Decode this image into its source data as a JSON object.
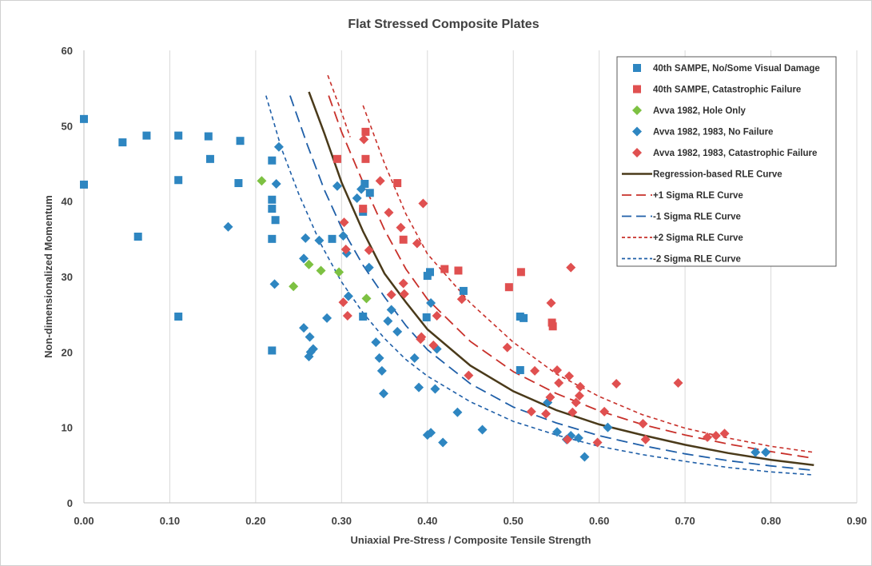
{
  "chart_data": {
    "type": "scatter",
    "title": "Flat Stressed Composite Plates",
    "xlabel": "Uniaxial Pre-Stress / Composite Tensile Strength",
    "ylabel": "Non-dimensionalized Momentum",
    "xlim": [
      0,
      0.9
    ],
    "ylim": [
      0,
      60
    ],
    "x_ticks": [
      "0.00",
      "0.10",
      "0.20",
      "0.30",
      "0.40",
      "0.50",
      "0.60",
      "0.70",
      "0.80",
      "0.90"
    ],
    "y_ticks": [
      "0",
      "10",
      "20",
      "30",
      "40",
      "50",
      "60"
    ],
    "grid": "vertical",
    "legend_position": "top-right",
    "series": [
      {
        "name": "40th SAMPE, No/Some Visual Damage",
        "kind": "scatter",
        "marker": "square",
        "color": "#2e86c1",
        "points": [
          [
            0.0,
            50.9
          ],
          [
            0.0,
            42.2
          ],
          [
            0.045,
            47.8
          ],
          [
            0.063,
            35.3
          ],
          [
            0.073,
            48.7
          ],
          [
            0.11,
            48.7
          ],
          [
            0.11,
            42.8
          ],
          [
            0.11,
            24.7
          ],
          [
            0.145,
            48.6
          ],
          [
            0.147,
            45.6
          ],
          [
            0.18,
            42.4
          ],
          [
            0.182,
            48.0
          ],
          [
            0.219,
            45.4
          ],
          [
            0.219,
            40.2
          ],
          [
            0.219,
            39.0
          ],
          [
            0.219,
            35.0
          ],
          [
            0.219,
            20.2
          ],
          [
            0.223,
            37.5
          ],
          [
            0.289,
            35.0
          ],
          [
            0.325,
            38.6
          ],
          [
            0.325,
            24.7
          ],
          [
            0.327,
            42.3
          ],
          [
            0.333,
            41.1
          ],
          [
            0.4,
            30.1
          ],
          [
            0.403,
            30.6
          ],
          [
            0.399,
            24.6
          ],
          [
            0.442,
            28.1
          ],
          [
            0.508,
            24.7
          ],
          [
            0.512,
            24.5
          ],
          [
            0.508,
            17.6
          ]
        ]
      },
      {
        "name": "40th SAMPE, Catastrophic Failure",
        "kind": "scatter",
        "marker": "square",
        "color": "#e05050",
        "points": [
          [
            0.295,
            45.6
          ],
          [
            0.328,
            49.2
          ],
          [
            0.328,
            45.6
          ],
          [
            0.325,
            39.0
          ],
          [
            0.365,
            42.4
          ],
          [
            0.372,
            34.9
          ],
          [
            0.42,
            31.0
          ],
          [
            0.436,
            30.8
          ],
          [
            0.495,
            28.6
          ],
          [
            0.509,
            30.6
          ],
          [
            0.545,
            23.9
          ],
          [
            0.546,
            23.4
          ]
        ]
      },
      {
        "name": "Avva 1982, Hole Only",
        "kind": "scatter",
        "marker": "diamond",
        "color": "#7dc142",
        "points": [
          [
            0.207,
            42.7
          ],
          [
            0.262,
            31.6
          ],
          [
            0.244,
            28.7
          ],
          [
            0.276,
            30.8
          ],
          [
            0.297,
            30.6
          ],
          [
            0.329,
            27.1
          ]
        ]
      },
      {
        "name": "Avva 1982, 1983, No Failure",
        "kind": "scatter",
        "marker": "diamond",
        "color": "#2e86c1",
        "points": [
          [
            0.227,
            47.2
          ],
          [
            0.224,
            42.3
          ],
          [
            0.168,
            36.6
          ],
          [
            0.222,
            29.0
          ],
          [
            0.258,
            35.1
          ],
          [
            0.256,
            32.4
          ],
          [
            0.274,
            34.8
          ],
          [
            0.295,
            42.0
          ],
          [
            0.302,
            35.4
          ],
          [
            0.306,
            33.1
          ],
          [
            0.308,
            27.4
          ],
          [
            0.256,
            23.2
          ],
          [
            0.263,
            22.0
          ],
          [
            0.267,
            20.4
          ],
          [
            0.264,
            20.0
          ],
          [
            0.262,
            19.4
          ],
          [
            0.283,
            24.5
          ],
          [
            0.318,
            40.4
          ],
          [
            0.323,
            41.6
          ],
          [
            0.332,
            31.2
          ],
          [
            0.34,
            21.3
          ],
          [
            0.344,
            19.2
          ],
          [
            0.347,
            17.5
          ],
          [
            0.349,
            14.5
          ],
          [
            0.354,
            24.1
          ],
          [
            0.358,
            25.6
          ],
          [
            0.365,
            22.7
          ],
          [
            0.385,
            19.2
          ],
          [
            0.39,
            15.3
          ],
          [
            0.4,
            9.0
          ],
          [
            0.404,
            9.3
          ],
          [
            0.404,
            26.5
          ],
          [
            0.409,
            15.1
          ],
          [
            0.411,
            20.4
          ],
          [
            0.418,
            8.0
          ],
          [
            0.435,
            12.0
          ],
          [
            0.464,
            9.7
          ],
          [
            0.54,
            13.3
          ],
          [
            0.551,
            9.4
          ],
          [
            0.562,
            8.4
          ],
          [
            0.567,
            8.9
          ],
          [
            0.576,
            8.6
          ],
          [
            0.583,
            6.1
          ],
          [
            0.61,
            10.0
          ],
          [
            0.782,
            6.7
          ],
          [
            0.794,
            6.7
          ]
        ]
      },
      {
        "name": "Avva 1982, 1983, Catastrophic Failure",
        "kind": "scatter",
        "marker": "diamond",
        "color": "#e05050",
        "points": [
          [
            0.326,
            48.2
          ],
          [
            0.303,
            37.2
          ],
          [
            0.305,
            33.6
          ],
          [
            0.302,
            26.6
          ],
          [
            0.307,
            24.8
          ],
          [
            0.332,
            33.5
          ],
          [
            0.345,
            42.7
          ],
          [
            0.355,
            38.5
          ],
          [
            0.358,
            27.6
          ],
          [
            0.369,
            36.5
          ],
          [
            0.372,
            29.1
          ],
          [
            0.373,
            27.7
          ],
          [
            0.388,
            34.4
          ],
          [
            0.393,
            22.0
          ],
          [
            0.392,
            21.7
          ],
          [
            0.395,
            39.7
          ],
          [
            0.407,
            20.9
          ],
          [
            0.411,
            24.8
          ],
          [
            0.44,
            27.0
          ],
          [
            0.448,
            16.9
          ],
          [
            0.493,
            20.6
          ],
          [
            0.521,
            12.1
          ],
          [
            0.525,
            17.5
          ],
          [
            0.538,
            11.8
          ],
          [
            0.543,
            14.0
          ],
          [
            0.544,
            26.5
          ],
          [
            0.551,
            17.6
          ],
          [
            0.553,
            15.9
          ],
          [
            0.563,
            8.4
          ],
          [
            0.565,
            16.8
          ],
          [
            0.567,
            31.2
          ],
          [
            0.569,
            12.0
          ],
          [
            0.573,
            13.3
          ],
          [
            0.577,
            14.2
          ],
          [
            0.578,
            15.4
          ],
          [
            0.598,
            8.0
          ],
          [
            0.606,
            12.1
          ],
          [
            0.62,
            15.8
          ],
          [
            0.651,
            10.5
          ],
          [
            0.654,
            8.4
          ],
          [
            0.692,
            15.9
          ],
          [
            0.726,
            8.7
          ],
          [
            0.736,
            8.9
          ],
          [
            0.746,
            9.2
          ]
        ]
      },
      {
        "name": "Regression-based RLE Curve",
        "kind": "line",
        "dash": "solid",
        "color": "#4a3a1a",
        "width": 2.5,
        "points": [
          [
            0.262,
            54.5
          ],
          [
            0.28,
            49.0
          ],
          [
            0.3,
            42.5
          ],
          [
            0.325,
            36.0
          ],
          [
            0.35,
            30.4
          ],
          [
            0.375,
            26.6
          ],
          [
            0.4,
            23.0
          ],
          [
            0.45,
            18.2
          ],
          [
            0.5,
            14.8
          ],
          [
            0.55,
            12.3
          ],
          [
            0.6,
            10.4
          ],
          [
            0.65,
            9.0
          ],
          [
            0.7,
            7.7
          ],
          [
            0.75,
            6.6
          ],
          [
            0.8,
            5.7
          ],
          [
            0.85,
            5.0
          ]
        ]
      },
      {
        "name": "+1 Sigma RLE Curve",
        "kind": "line",
        "dash": "long",
        "color": "#c8302a",
        "width": 1.8,
        "points": [
          [
            0.285,
            54.0
          ],
          [
            0.3,
            49.2
          ],
          [
            0.325,
            42.5
          ],
          [
            0.35,
            36.2
          ],
          [
            0.375,
            31.0
          ],
          [
            0.4,
            27.0
          ],
          [
            0.45,
            21.4
          ],
          [
            0.5,
            17.4
          ],
          [
            0.55,
            14.5
          ],
          [
            0.6,
            12.2
          ],
          [
            0.65,
            10.4
          ],
          [
            0.7,
            9.0
          ],
          [
            0.75,
            7.8
          ],
          [
            0.8,
            6.8
          ],
          [
            0.85,
            5.9
          ]
        ]
      },
      {
        "name": "-1 Sigma RLE Curve",
        "kind": "line",
        "dash": "long",
        "color": "#1f5fa8",
        "width": 1.8,
        "points": [
          [
            0.24,
            54.0
          ],
          [
            0.26,
            47.5
          ],
          [
            0.28,
            41.5
          ],
          [
            0.3,
            36.5
          ],
          [
            0.325,
            31.5
          ],
          [
            0.35,
            27.3
          ],
          [
            0.375,
            23.5
          ],
          [
            0.4,
            20.3
          ],
          [
            0.45,
            15.8
          ],
          [
            0.5,
            12.7
          ],
          [
            0.55,
            10.6
          ],
          [
            0.6,
            8.9
          ],
          [
            0.65,
            7.6
          ],
          [
            0.7,
            6.5
          ],
          [
            0.75,
            5.6
          ],
          [
            0.8,
            4.9
          ],
          [
            0.85,
            4.3
          ]
        ]
      },
      {
        "name": "+2 Sigma RLE Curve",
        "kind": "line",
        "dash": "short",
        "color": "#c8302a",
        "width": 1.6,
        "points": [
          [
            0.284,
            56.7
          ],
          [
            0.3,
            51.8
          ],
          [
            0.31,
            48.5
          ]
        ]
      },
      {
        "name": "+2 Sigma RLE Curve (continued)",
        "kind": "line",
        "dash": "short",
        "color": "#c8302a",
        "width": 1.6,
        "points": [
          [
            0.325,
            52.7
          ],
          [
            0.35,
            45.0
          ],
          [
            0.375,
            38.3
          ],
          [
            0.4,
            33.0
          ],
          [
            0.45,
            26.5
          ],
          [
            0.5,
            21.3
          ],
          [
            0.55,
            17.1
          ],
          [
            0.6,
            14.1
          ],
          [
            0.65,
            11.7
          ],
          [
            0.7,
            9.9
          ],
          [
            0.75,
            8.6
          ],
          [
            0.8,
            7.5
          ],
          [
            0.85,
            6.7
          ]
        ]
      },
      {
        "name": "-2 Sigma RLE Curve",
        "kind": "line",
        "dash": "short",
        "color": "#1f5fa8",
        "width": 1.6,
        "points": [
          [
            0.212,
            54.0
          ],
          [
            0.23,
            47.0
          ],
          [
            0.25,
            41.0
          ],
          [
            0.275,
            34.5
          ],
          [
            0.3,
            29.3
          ],
          [
            0.325,
            25.2
          ],
          [
            0.35,
            21.8
          ],
          [
            0.375,
            19.0
          ],
          [
            0.4,
            16.8
          ],
          [
            0.45,
            13.4
          ],
          [
            0.5,
            10.8
          ],
          [
            0.55,
            9.0
          ],
          [
            0.6,
            7.5
          ],
          [
            0.65,
            6.4
          ],
          [
            0.7,
            5.5
          ],
          [
            0.75,
            4.7
          ],
          [
            0.8,
            4.1
          ],
          [
            0.85,
            3.7
          ]
        ]
      }
    ],
    "legend": [
      {
        "label": "40th SAMPE, No/Some Visual Damage",
        "marker": "square",
        "color": "#2e86c1"
      },
      {
        "label": "40th SAMPE, Catastrophic Failure",
        "marker": "square",
        "color": "#e05050"
      },
      {
        "label": "Avva 1982, Hole Only",
        "marker": "diamond",
        "color": "#7dc142"
      },
      {
        "label": "Avva 1982, 1983, No Failure",
        "marker": "diamond",
        "color": "#2e86c1"
      },
      {
        "label": "Avva 1982, 1983, Catastrophic Failure",
        "marker": "diamond",
        "color": "#e05050"
      },
      {
        "label": "Regression-based RLE Curve",
        "marker": "line-solid",
        "color": "#4a3a1a"
      },
      {
        "label": "+1 Sigma RLE Curve",
        "marker": "line-long",
        "color": "#c8302a"
      },
      {
        "label": "-1 Sigma RLE Curve",
        "marker": "line-long",
        "color": "#1f5fa8"
      },
      {
        "label": "+2 Sigma RLE Curve",
        "marker": "line-short",
        "color": "#c8302a"
      },
      {
        "label": "-2 Sigma RLE Curve",
        "marker": "line-short",
        "color": "#1f5fa8"
      }
    ]
  }
}
